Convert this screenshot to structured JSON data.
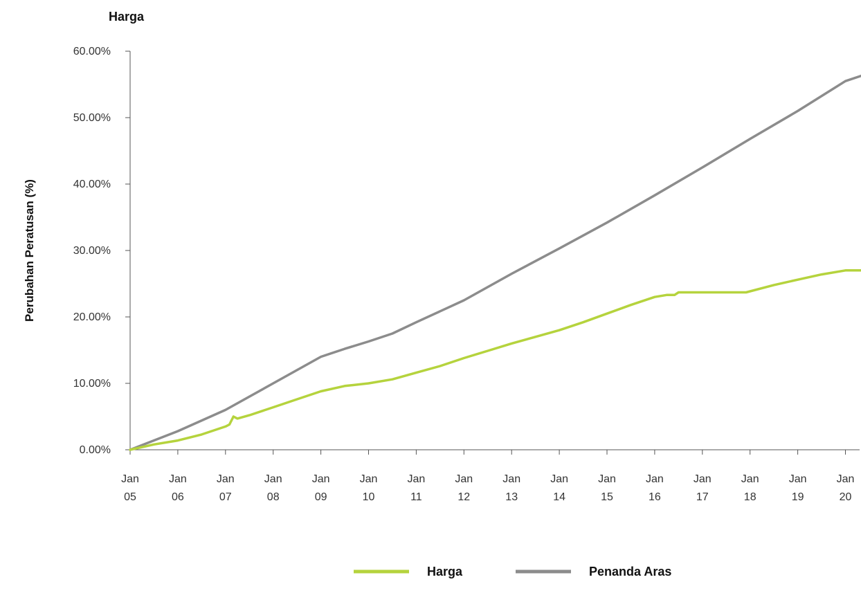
{
  "chart_data": {
    "type": "line",
    "title": "Harga",
    "xlabel": "",
    "ylabel": "Perubahan Peratusan (%)",
    "ylim": [
      0,
      60
    ],
    "yticks": [
      "0.00%",
      "10.00%",
      "20.00%",
      "30.00%",
      "40.00%",
      "50.00%",
      "60.00%"
    ],
    "ytick_values": [
      0,
      10,
      20,
      30,
      40,
      50,
      60
    ],
    "xticks": [
      {
        "month": "Jan",
        "year": "05",
        "date": "2005-01"
      },
      {
        "month": "Jan",
        "year": "06",
        "date": "2006-01"
      },
      {
        "month": "Jan",
        "year": "07",
        "date": "2007-01"
      },
      {
        "month": "Jan",
        "year": "08",
        "date": "2008-01"
      },
      {
        "month": "Jan",
        "year": "09",
        "date": "2009-01"
      },
      {
        "month": "Jan",
        "year": "10",
        "date": "2010-01"
      },
      {
        "month": "Jan",
        "year": "11",
        "date": "2011-01"
      },
      {
        "month": "Jan",
        "year": "12",
        "date": "2012-01"
      },
      {
        "month": "Jan",
        "year": "13",
        "date": "2013-01"
      },
      {
        "month": "Jan",
        "year": "14",
        "date": "2014-01"
      },
      {
        "month": "Jan",
        "year": "15",
        "date": "2015-01"
      },
      {
        "month": "Jan",
        "year": "16",
        "date": "2016-01"
      },
      {
        "month": "Jan",
        "year": "17",
        "date": "2017-01"
      },
      {
        "month": "Jan",
        "year": "18",
        "date": "2018-01"
      },
      {
        "month": "Jan",
        "year": "19",
        "date": "2019-01"
      },
      {
        "month": "Jan",
        "year": "20",
        "date": "2020-01"
      }
    ],
    "grid": false,
    "legend_position": "bottom",
    "series": [
      {
        "name": "Harga",
        "color": "#b5d33d",
        "points": [
          [
            "2005-01",
            0.0
          ],
          [
            "2005-07",
            0.8
          ],
          [
            "2006-01",
            1.4
          ],
          [
            "2006-07",
            2.3
          ],
          [
            "2007-01",
            3.5
          ],
          [
            "2007-02",
            3.8
          ],
          [
            "2007-03",
            5.0
          ],
          [
            "2007-04",
            4.7
          ],
          [
            "2007-07",
            5.2
          ],
          [
            "2008-01",
            6.4
          ],
          [
            "2008-07",
            7.6
          ],
          [
            "2009-01",
            8.8
          ],
          [
            "2009-07",
            9.6
          ],
          [
            "2010-01",
            10.0
          ],
          [
            "2010-07",
            10.6
          ],
          [
            "2011-01",
            11.6
          ],
          [
            "2011-07",
            12.6
          ],
          [
            "2012-01",
            13.8
          ],
          [
            "2012-07",
            14.9
          ],
          [
            "2013-01",
            16.0
          ],
          [
            "2013-07",
            17.0
          ],
          [
            "2014-01",
            18.0
          ],
          [
            "2014-07",
            19.2
          ],
          [
            "2015-01",
            20.5
          ],
          [
            "2015-07",
            21.8
          ],
          [
            "2016-01",
            23.0
          ],
          [
            "2016-04",
            23.3
          ],
          [
            "2016-06",
            23.3
          ],
          [
            "2016-07",
            23.7
          ],
          [
            "2017-01",
            23.7
          ],
          [
            "2017-07",
            23.7
          ],
          [
            "2017-12",
            23.7
          ],
          [
            "2018-07",
            24.8
          ],
          [
            "2019-01",
            25.6
          ],
          [
            "2019-07",
            26.4
          ],
          [
            "2020-01",
            27.0
          ],
          [
            "2020-05",
            27.0
          ]
        ]
      },
      {
        "name": "Penanda Aras",
        "color": "#8c8c8c",
        "points": [
          [
            "2005-01",
            0.0
          ],
          [
            "2006-01",
            2.8
          ],
          [
            "2007-01",
            6.0
          ],
          [
            "2008-01",
            10.0
          ],
          [
            "2009-01",
            14.0
          ],
          [
            "2009-07",
            15.2
          ],
          [
            "2010-01",
            16.3
          ],
          [
            "2010-07",
            17.5
          ],
          [
            "2011-01",
            19.2
          ],
          [
            "2012-01",
            22.5
          ],
          [
            "2013-01",
            26.5
          ],
          [
            "2014-01",
            30.3
          ],
          [
            "2015-01",
            34.2
          ],
          [
            "2016-01",
            38.3
          ],
          [
            "2017-01",
            42.5
          ],
          [
            "2018-01",
            46.8
          ],
          [
            "2019-01",
            51.0
          ],
          [
            "2020-01",
            55.5
          ],
          [
            "2020-05",
            56.3
          ]
        ]
      }
    ]
  }
}
